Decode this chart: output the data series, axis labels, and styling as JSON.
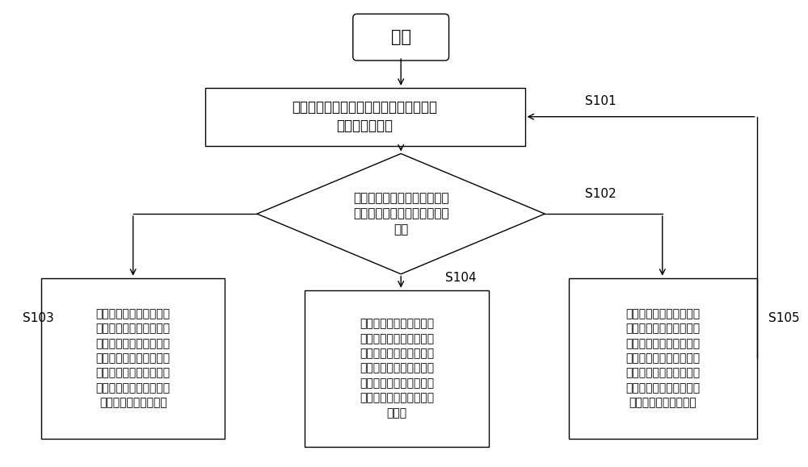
{
  "bg_color": "#ffffff",
  "start_text": "开始",
  "box1_text": "在当前扫描周期开始前，从数据节点中读\n取距离感应数据",
  "diamond_text": "判断读取的距离感应数据与第\n一阈值和第二阈值之间的大小\n关系",
  "box_left_text": "如果距离感应数据小于或\n等于第一阈值，则将当前\n距离状态标识更改为第一\n状态标识，以及根据第一\n状态标识在当前扫描周期\n时间内扫描移动终端的指\n纹采集模块采集的图像",
  "box_center_text": "如果距离感应数据大于第\n一阈值且小于第二阈值，\n则根据当前距离状态标识\n确定当前周期中移动终端\n与遮挡物的距离状态，以\n及执行距离状态标识对应\n的操作",
  "box_right_text": "如果距离感应数据大于或\n等于第二阈值，则将当前\n距离状态标识更改为第二\n状态标识，以及根据第二\n状态标识在当前扫描周期\n时间内不执行扫描操作、\n直至当前扫描周期结束",
  "label_s101": "S101",
  "label_s102": "S102",
  "label_s103": "S103",
  "label_s104": "S104",
  "label_s105": "S105",
  "edge_color": "#000000",
  "text_color": "#000000",
  "line_width": 1.0
}
